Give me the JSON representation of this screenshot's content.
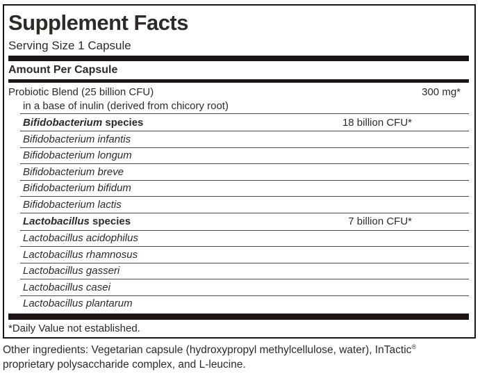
{
  "label": {
    "title": "Supplement Facts",
    "serving_size": "Serving Size 1 Capsule",
    "column_header": "Amount Per Capsule",
    "main_row": {
      "name": "Probiotic Blend (25 billion CFU)",
      "sub": "in a base of inulin (derived from chicory root)",
      "amount": "300 mg*"
    },
    "groups": [
      {
        "genus": "Bifidobacterium",
        "suffix": " species",
        "amount": "18 billion CFU*",
        "species": [
          "Bifidobacterium infantis",
          "Bifidobacterium longum",
          "Bifidobacterium breve",
          "Bifidobacterium bifidum",
          "Bifidobacterium lactis"
        ]
      },
      {
        "genus": "Lactobacillus",
        "suffix": " species",
        "amount": "7 billion CFU*",
        "species": [
          "Lactobacillus acidophilus",
          "Lactobacillus rhamnosus",
          "Lactobacillus gasseri",
          "Lactobacillus casei",
          "Lactobacillus plantarum"
        ]
      }
    ],
    "footnote": "*Daily Value not established.",
    "other_ingredients": {
      "line1": "Other ingredients: Vegetarian capsule (hydroxypropyl methylcellulose, water), InTactic",
      "reg_mark": "®",
      "line2": "proprietary polysaccharide complex, and L-leucine."
    }
  },
  "colors": {
    "text": "#2e2a26",
    "bar": "#191512",
    "hairline": "#4d4845"
  }
}
